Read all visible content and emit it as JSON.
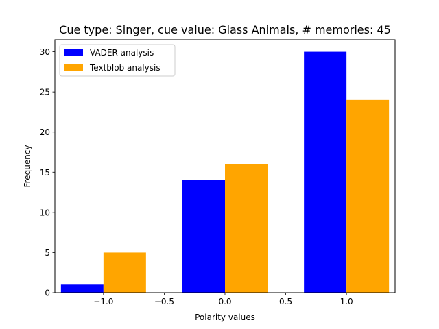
{
  "chart_data": {
    "type": "bar",
    "title": "Cue type: Singer, cue value: Glass Animals, # memories: 45",
    "xlabel": "Polarity values",
    "ylabel": "Frequency",
    "xlim": [
      -1.4,
      1.4
    ],
    "ylim": [
      0,
      31.5
    ],
    "xticks": [
      {
        "value": -1.0,
        "label": "−1.0"
      },
      {
        "value": -0.5,
        "label": "−0.5"
      },
      {
        "value": 0.0,
        "label": "0.0"
      },
      {
        "value": 0.5,
        "label": "0.5"
      },
      {
        "value": 1.0,
        "label": "1.0"
      }
    ],
    "yticks": [
      {
        "value": 0,
        "label": "0"
      },
      {
        "value": 5,
        "label": "5"
      },
      {
        "value": 10,
        "label": "10"
      },
      {
        "value": 15,
        "label": "15"
      },
      {
        "value": 20,
        "label": "20"
      },
      {
        "value": 25,
        "label": "25"
      },
      {
        "value": 30,
        "label": "30"
      }
    ],
    "categories": [
      -1.0,
      0.0,
      1.0
    ],
    "bar_width": 0.35,
    "series": [
      {
        "name": "VADER analysis",
        "color": "#0000ff",
        "values": [
          1,
          14,
          30
        ]
      },
      {
        "name": "Textblob analysis",
        "color": "#ffa500",
        "values": [
          5,
          16,
          24
        ]
      }
    ],
    "legend_position": "top-left",
    "grid": false
  }
}
